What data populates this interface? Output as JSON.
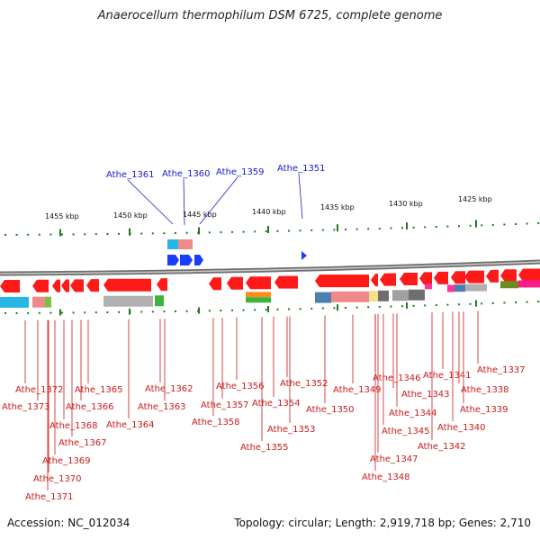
{
  "title": "Anaerocellum thermophilum DSM 6725, complete genome",
  "footer": {
    "accession": "Accession: NC_012034",
    "summary": "Topology: circular; Length: 2,919,718 bp; Genes: 2,710"
  },
  "colors": {
    "forward_gene": "#1a3cff",
    "reverse_gene": "#ff1a1a",
    "tick": "#1e7a1e",
    "backbone": "#8c8c8c",
    "label_blue": "#1a1acc",
    "label_red": "#cc1a1a"
  },
  "scale_labels": [
    "1455 kbp",
    "1450 kbp",
    "1445 kbp",
    "1440 kbp",
    "1435 kbp",
    "1430 kbp",
    "1425 kbp"
  ],
  "top_labels": [
    "Athe_1361",
    "Athe_1360",
    "Athe_1359",
    "Athe_1351"
  ],
  "bottom_labels": [
    "Athe_1372",
    "Athe_1373",
    "Athe_1365",
    "Athe_1366",
    "Athe_1368",
    "Athe_1367",
    "Athe_1369",
    "Athe_1370",
    "Athe_1371",
    "Athe_1364",
    "Athe_1362",
    "Athe_1363",
    "Athe_1356",
    "Athe_1357",
    "Athe_1358",
    "Athe_1354",
    "Athe_1355",
    "Athe_1352",
    "Athe_1353",
    "Athe_1350",
    "Athe_1349",
    "Athe_1346",
    "Athe_1343",
    "Athe_1344",
    "Athe_1345",
    "Athe_1347",
    "Athe_1348",
    "Athe_1341",
    "Athe_1342",
    "Athe_1340",
    "Athe_1339",
    "Athe_1338",
    "Athe_1337"
  ]
}
